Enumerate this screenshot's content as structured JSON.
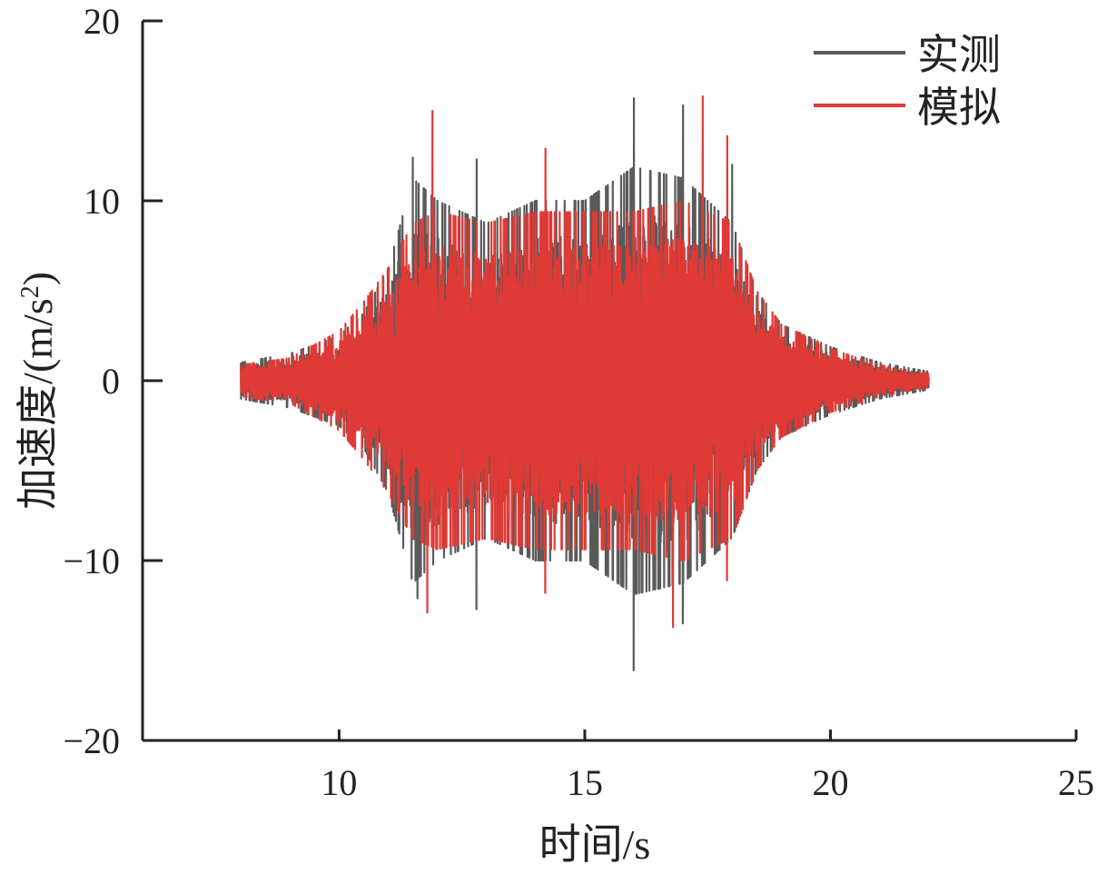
{
  "chart_data": {
    "type": "line",
    "title": "",
    "xlabel": "时间/s",
    "ylabel": "加速度/(m/s",
    "ylabel_sup": "2",
    "ylabel_close": ")",
    "xlim": [
      6,
      25
    ],
    "ylim": [
      -20,
      20
    ],
    "x_ticks": [
      10,
      15,
      20,
      25
    ],
    "x_tick_labels": [
      "10",
      "15",
      "20",
      "25"
    ],
    "y_ticks": [
      -20,
      -10,
      0,
      10,
      20
    ],
    "y_tick_labels": [
      "−20",
      "−10",
      "0",
      "10",
      "20"
    ],
    "grid": false,
    "legend_position": "top-right",
    "time_range": [
      8,
      22
    ],
    "series": [
      {
        "name": "实测",
        "color": "#5a5a5a",
        "peak_values": [
          {
            "x": 11.5,
            "y": 12.4
          },
          {
            "x": 11.6,
            "y": -12.1
          },
          {
            "x": 12.8,
            "y": 12.3
          },
          {
            "x": 12.8,
            "y": -12.7
          },
          {
            "x": 16.0,
            "y": 15.7
          },
          {
            "x": 16.0,
            "y": -16.1
          },
          {
            "x": 17.0,
            "y": 15.3
          },
          {
            "x": 17.0,
            "y": -13.5
          },
          {
            "x": 18.0,
            "y": 12.0
          },
          {
            "x": 18.5,
            "y": 4.7
          }
        ],
        "envelope": [
          {
            "x": 8.0,
            "y": 0.8
          },
          {
            "x": 9.0,
            "y": 1.2
          },
          {
            "x": 10.0,
            "y": 2.0
          },
          {
            "x": 10.5,
            "y": 3.0
          },
          {
            "x": 11.0,
            "y": 5.0
          },
          {
            "x": 11.5,
            "y": 9.0
          },
          {
            "x": 12.0,
            "y": 8.0
          },
          {
            "x": 13.0,
            "y": 7.0
          },
          {
            "x": 14.0,
            "y": 8.0
          },
          {
            "x": 15.0,
            "y": 8.0
          },
          {
            "x": 16.0,
            "y": 9.5
          },
          {
            "x": 17.0,
            "y": 9.0
          },
          {
            "x": 18.0,
            "y": 7.0
          },
          {
            "x": 18.5,
            "y": 4.0
          },
          {
            "x": 19.0,
            "y": 2.5
          },
          {
            "x": 20.0,
            "y": 1.5
          },
          {
            "x": 21.0,
            "y": 0.8
          },
          {
            "x": 22.0,
            "y": 0.4
          }
        ]
      },
      {
        "name": "模拟",
        "color": "#e03a36",
        "peak_values": [
          {
            "x": 11.9,
            "y": 15.0
          },
          {
            "x": 11.8,
            "y": -12.9
          },
          {
            "x": 14.2,
            "y": 12.9
          },
          {
            "x": 14.2,
            "y": -11.8
          },
          {
            "x": 17.4,
            "y": 15.8
          },
          {
            "x": 16.8,
            "y": -13.7
          },
          {
            "x": 17.9,
            "y": 13.6
          },
          {
            "x": 17.9,
            "y": -11.1
          }
        ],
        "envelope": [
          {
            "x": 8.0,
            "y": 0.7
          },
          {
            "x": 9.0,
            "y": 1.0
          },
          {
            "x": 10.0,
            "y": 2.2
          },
          {
            "x": 10.5,
            "y": 3.5
          },
          {
            "x": 11.0,
            "y": 5.0
          },
          {
            "x": 11.5,
            "y": 7.0
          },
          {
            "x": 12.0,
            "y": 7.5
          },
          {
            "x": 13.0,
            "y": 7.0
          },
          {
            "x": 14.0,
            "y": 7.5
          },
          {
            "x": 15.0,
            "y": 7.5
          },
          {
            "x": 16.0,
            "y": 7.5
          },
          {
            "x": 17.0,
            "y": 8.0
          },
          {
            "x": 18.0,
            "y": 7.0
          },
          {
            "x": 18.5,
            "y": 4.0
          },
          {
            "x": 19.0,
            "y": 2.5
          },
          {
            "x": 20.0,
            "y": 1.4
          },
          {
            "x": 21.0,
            "y": 0.7
          },
          {
            "x": 22.0,
            "y": 0.3
          }
        ]
      }
    ]
  }
}
